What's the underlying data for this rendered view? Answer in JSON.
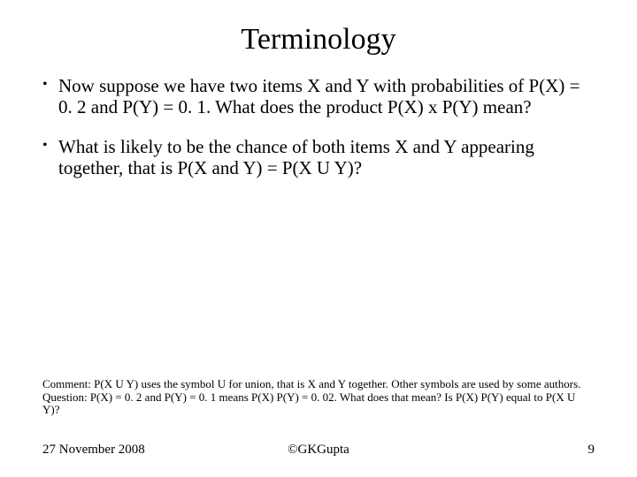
{
  "title": "Terminology",
  "bullets": [
    "Now suppose we have two items X and Y with probabilities of P(X) = 0. 2 and P(Y) = 0. 1. What does the product P(X) x P(Y) mean?",
    "What is likely to be the chance of both items X and Y appearing together, that is P(X and Y) = P(X U Y)?"
  ],
  "comment": {
    "label1": "Comment:",
    "text1": "P(X U Y) uses the symbol U for union, that is X and Y together. Other symbols are used by some authors.",
    "label2": "Question:",
    "text2": "P(X) = 0. 2 and P(Y) = 0. 1 means P(X) P(Y) = 0. 02. What does that mean? Is P(X) P(Y) equal to P(X U Y)?"
  },
  "footer": {
    "date": "27 November 2008",
    "copyright": "©GKGupta",
    "page": "9"
  },
  "style": {
    "background_color": "#ffffff",
    "text_color": "#000000",
    "title_fontsize": 34,
    "body_fontsize": 21,
    "comment_fontsize": 13,
    "footer_fontsize": 15,
    "font_family": "Century Schoolbook, Times New Roman, Georgia, serif"
  }
}
